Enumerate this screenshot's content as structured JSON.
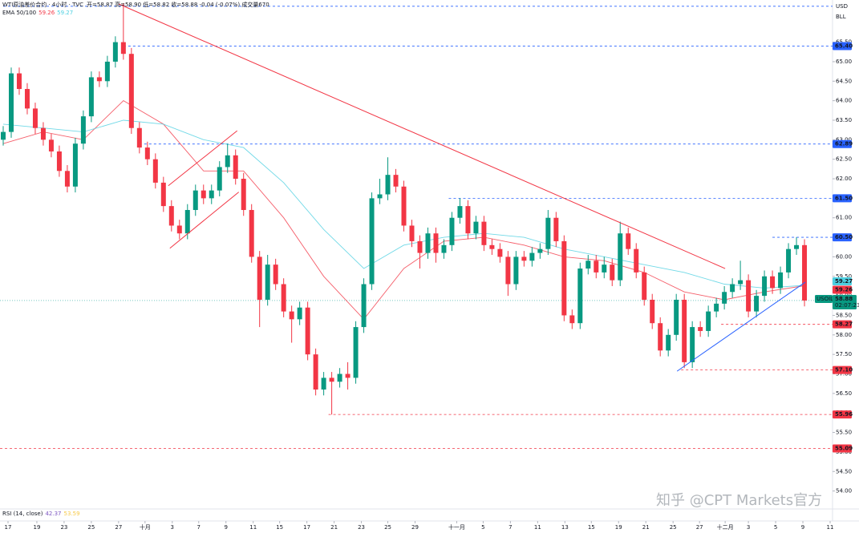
{
  "chart_data": {
    "type": "candlestick",
    "header": {
      "symbol": "WTI原油差价合约 · 4小时 · TVC",
      "ohlc": "开=58.87 高=58.90 低=58.82 收=58.88 -0.04 (-0.07%) 成交量670"
    },
    "indicator_label": "EMA 50/100",
    "rsi_label": "RSI (14, close)",
    "rsi_values": [
      42.37,
      53.59
    ],
    "currency": "USD",
    "unit": "BLL",
    "symbol_tag": "USOIL",
    "countdown": "02:07:23",
    "watermark": "知乎 @CPT Markets官方",
    "up_color": "#089981",
    "down_color": "#f23645",
    "xlim": [
      -0.4,
      103.5
    ],
    "ylim": [
      53.54,
      66.58
    ],
    "candles": {
      "open": [
        63.0,
        63.2,
        64.7,
        64.3,
        63.8,
        63.3,
        63.0,
        62.7,
        62.2,
        61.8,
        62.9,
        63.6,
        64.6,
        64.5,
        65.0,
        65.5,
        65.2,
        63.3,
        62.8,
        62.5,
        61.9,
        61.3,
        60.8,
        60.6,
        61.2,
        61.7,
        61.5,
        61.7,
        62.3,
        62.6,
        62.0,
        61.2,
        60.0,
        58.9,
        59.8,
        59.3,
        58.6,
        58.4,
        58.7,
        57.5,
        56.6,
        56.9,
        56.8,
        57.0,
        56.9,
        58.2,
        59.3,
        61.5,
        61.6,
        62.1,
        61.8,
        60.8,
        60.4,
        60.1,
        60.6,
        60.1,
        60.3,
        61.0,
        61.3,
        60.6,
        60.9,
        60.3,
        60.2,
        60.0,
        59.3,
        60.0,
        59.9,
        60.1,
        60.2,
        61.0,
        60.4,
        58.5,
        58.3,
        59.7,
        59.9,
        59.6,
        59.8,
        59.4,
        60.6,
        60.2,
        59.6,
        58.9,
        58.3,
        57.6,
        58.0,
        58.9,
        57.3,
        58.2,
        58.1,
        58.6,
        58.8,
        59.1,
        59.3,
        59.4,
        58.6,
        59.0,
        59.5,
        59.2,
        59.6,
        60.2,
        60.3
      ],
      "high": [
        63.35,
        64.85,
        64.85,
        64.45,
        63.95,
        63.45,
        63.15,
        62.85,
        62.35,
        63.05,
        63.75,
        64.75,
        64.75,
        65.15,
        65.65,
        66.5,
        65.35,
        63.45,
        62.95,
        62.65,
        62.05,
        61.45,
        60.95,
        61.35,
        61.85,
        61.85,
        61.85,
        62.45,
        62.9,
        62.75,
        62.15,
        61.35,
        60.15,
        60.05,
        59.95,
        59.45,
        58.75,
        58.85,
        58.85,
        57.65,
        57.05,
        57.05,
        57.15,
        57.3,
        58.35,
        59.45,
        61.65,
        62.0,
        62.55,
        62.25,
        61.95,
        60.95,
        60.55,
        60.75,
        60.75,
        60.45,
        61.15,
        61.5,
        61.45,
        61.05,
        61.05,
        60.45,
        60.35,
        60.15,
        60.15,
        60.15,
        60.25,
        60.35,
        61.2,
        61.15,
        60.55,
        58.65,
        59.85,
        60.05,
        60.05,
        60.0,
        59.95,
        60.9,
        60.75,
        60.35,
        59.75,
        59.05,
        58.45,
        58.15,
        59.05,
        59.05,
        58.35,
        58.35,
        58.75,
        58.95,
        59.25,
        59.45,
        59.9,
        59.55,
        59.15,
        59.65,
        59.65,
        59.75,
        60.35,
        60.5,
        60.45
      ],
      "low": [
        62.85,
        63.05,
        64.15,
        63.65,
        63.15,
        62.85,
        62.55,
        62.05,
        61.65,
        61.65,
        62.75,
        63.45,
        64.35,
        64.35,
        64.85,
        65.05,
        63.15,
        62.65,
        62.35,
        61.75,
        61.15,
        60.65,
        60.45,
        60.45,
        61.05,
        61.35,
        61.35,
        61.55,
        62.15,
        61.85,
        61.05,
        59.85,
        58.2,
        58.75,
        59.15,
        58.45,
        57.8,
        58.25,
        57.35,
        56.45,
        56.45,
        55.96,
        56.65,
        56.6,
        56.75,
        58.05,
        59.15,
        61.35,
        61.45,
        61.65,
        60.65,
        60.25,
        59.7,
        59.95,
        59.85,
        59.95,
        60.15,
        60.85,
        60.45,
        60.45,
        60.15,
        60.05,
        59.85,
        59.0,
        59.15,
        59.75,
        59.75,
        59.95,
        60.05,
        60.25,
        58.35,
        58.15,
        58.15,
        59.55,
        59.45,
        59.45,
        59.25,
        59.25,
        60.05,
        59.45,
        58.75,
        58.15,
        57.45,
        57.45,
        57.85,
        57.15,
        57.15,
        57.95,
        57.95,
        58.45,
        58.65,
        58.95,
        59.15,
        58.45,
        58.45,
        58.85,
        59.05,
        59.05,
        59.45,
        60.05,
        58.73
      ],
      "close": [
        63.2,
        64.7,
        64.3,
        63.8,
        63.3,
        63.0,
        62.7,
        62.2,
        61.8,
        62.9,
        63.6,
        64.6,
        64.5,
        65.0,
        65.5,
        65.2,
        63.3,
        62.8,
        62.5,
        61.9,
        61.3,
        60.8,
        60.6,
        61.2,
        61.7,
        61.5,
        61.7,
        62.3,
        62.6,
        62.0,
        61.2,
        60.0,
        58.9,
        59.8,
        59.3,
        58.6,
        58.4,
        58.7,
        57.5,
        56.6,
        56.9,
        56.8,
        57.0,
        56.9,
        58.2,
        59.3,
        61.5,
        61.6,
        62.1,
        61.8,
        60.8,
        60.4,
        60.1,
        60.6,
        60.1,
        60.3,
        61.0,
        61.3,
        60.6,
        60.9,
        60.3,
        60.2,
        60.0,
        59.3,
        60.0,
        59.9,
        60.1,
        60.2,
        61.0,
        60.4,
        58.5,
        58.3,
        59.7,
        59.9,
        59.6,
        59.8,
        59.4,
        60.6,
        60.2,
        59.6,
        58.9,
        58.3,
        57.6,
        58.0,
        58.9,
        57.3,
        58.2,
        58.1,
        58.6,
        58.8,
        59.1,
        59.3,
        59.4,
        58.6,
        59.0,
        59.5,
        59.2,
        59.6,
        60.2,
        60.3,
        58.88
      ]
    },
    "series": [
      {
        "color": "#f23645",
        "x": [
          0,
          5,
          10,
          15,
          20,
          25,
          30,
          35,
          40,
          45,
          50,
          55,
          60,
          65,
          70,
          75,
          80,
          85,
          90,
          95,
          100
        ],
        "values": [
          62.9,
          63.2,
          63.0,
          64.0,
          63.4,
          62.2,
          62.2,
          61.0,
          59.5,
          58.4,
          59.7,
          60.4,
          60.5,
          60.3,
          60.0,
          59.9,
          59.6,
          59.1,
          58.9,
          59.1,
          59.26
        ]
      },
      {
        "color": "#4dd0e1",
        "x": [
          0,
          5,
          10,
          15,
          20,
          25,
          30,
          35,
          40,
          45,
          50,
          55,
          60,
          65,
          70,
          75,
          80,
          85,
          90,
          95,
          100
        ],
        "values": [
          63.4,
          63.3,
          63.2,
          63.5,
          63.4,
          63.0,
          62.8,
          61.9,
          60.7,
          59.7,
          60.3,
          60.5,
          60.6,
          60.5,
          60.2,
          60.0,
          59.8,
          59.6,
          59.3,
          59.2,
          59.27
        ]
      }
    ],
    "trendlines": [
      {
        "x": [
          14.4,
          90.1
        ],
        "y": [
          66.48,
          59.7
        ],
        "color": "#f23645"
      },
      {
        "x": [
          84.1,
          100.1
        ],
        "y": [
          57.07,
          59.35
        ],
        "color": "#2962ff"
      },
      {
        "x": [
          20.8,
          29.4
        ],
        "y": [
          60.22,
          61.66
        ],
        "color": "#f23645"
      },
      {
        "x": [
          20.6,
          29.2
        ],
        "y": [
          61.82,
          63.23
        ],
        "color": "#f23645"
      }
    ],
    "levels": [
      {
        "value": 66.42,
        "from": 0,
        "color": "#2962ff"
      },
      {
        "value": 65.4,
        "label": "65.40",
        "from": 15,
        "color": "#2962ff"
      },
      {
        "value": 62.89,
        "label": "62.89",
        "from": 17.6,
        "color": "#2962ff"
      },
      {
        "value": 61.5,
        "label": "61.50",
        "from": 55.6,
        "color": "#2962ff"
      },
      {
        "value": 60.5,
        "label": "60.50",
        "from": 96,
        "color": "#2962ff"
      },
      {
        "value": 58.27,
        "label": "58.27",
        "from": 89.6,
        "color": "#f23645"
      },
      {
        "value": 57.1,
        "label": "57.10",
        "from": 84.6,
        "color": "#f23645"
      },
      {
        "value": 55.96,
        "label": "55.96",
        "from": 40.6,
        "color": "#f23645"
      },
      {
        "value": 55.09,
        "label": "55.09",
        "from": -0.4,
        "color": "#f23645"
      }
    ],
    "yticks": [
      {
        "value": 54,
        "label": "54.00"
      },
      {
        "value": 54.5,
        "label": "54.50"
      },
      {
        "value": 55,
        "label": "55.00"
      },
      {
        "value": 55.5,
        "label": "55.50"
      },
      {
        "value": 56,
        "label": "56.00"
      },
      {
        "value": 56.5,
        "label": "56.50"
      },
      {
        "value": 57,
        "label": "57.00"
      },
      {
        "value": 57.5,
        "label": "57.50"
      },
      {
        "value": 58,
        "label": "58.00"
      },
      {
        "value": 58.5,
        "label": "58.50"
      },
      {
        "value": 59,
        "label": "59.00"
      },
      {
        "value": 59.5,
        "label": "59.50"
      },
      {
        "value": 60,
        "label": "60.00"
      },
      {
        "value": 60.5,
        "label": "60.50"
      },
      {
        "value": 61,
        "label": "61.00"
      },
      {
        "value": 61.5,
        "label": "61.50"
      },
      {
        "value": 62,
        "label": "62.00"
      },
      {
        "value": 62.5,
        "label": "62.50"
      },
      {
        "value": 63,
        "label": "63.00"
      },
      {
        "value": 63.5,
        "label": "63.50"
      },
      {
        "value": 64,
        "label": "64.00"
      },
      {
        "value": 64.5,
        "label": "64.50"
      },
      {
        "value": 65,
        "label": "65.00"
      },
      {
        "value": 65.5,
        "label": "65.50"
      }
    ],
    "xticks": [
      {
        "value": 0.6,
        "label": "17"
      },
      {
        "value": 4.2,
        "label": "19"
      },
      {
        "value": 7.6,
        "label": "23"
      },
      {
        "value": 11,
        "label": "25"
      },
      {
        "value": 14.4,
        "label": "27"
      },
      {
        "value": 17.7,
        "label": "十月"
      },
      {
        "value": 21.1,
        "label": "3"
      },
      {
        "value": 24.4,
        "label": "7"
      },
      {
        "value": 27.8,
        "label": "9"
      },
      {
        "value": 31.2,
        "label": "11"
      },
      {
        "value": 34.5,
        "label": "15"
      },
      {
        "value": 37.9,
        "label": "17"
      },
      {
        "value": 41.3,
        "label": "21"
      },
      {
        "value": 44.7,
        "label": "23"
      },
      {
        "value": 48,
        "label": "25"
      },
      {
        "value": 51.4,
        "label": "29"
      },
      {
        "value": 56.6,
        "label": "十一月"
      },
      {
        "value": 59.9,
        "label": "5"
      },
      {
        "value": 63.3,
        "label": "7"
      },
      {
        "value": 66.7,
        "label": "11"
      },
      {
        "value": 70.1,
        "label": "13"
      },
      {
        "value": 73.4,
        "label": "15"
      },
      {
        "value": 76.8,
        "label": "19"
      },
      {
        "value": 80.2,
        "label": "21"
      },
      {
        "value": 83.6,
        "label": "25"
      },
      {
        "value": 86.9,
        "label": "27"
      },
      {
        "value": 90.1,
        "label": "十二月"
      },
      {
        "value": 93,
        "label": "3"
      },
      {
        "value": 96.4,
        "label": "5"
      },
      {
        "value": 99.8,
        "label": "9"
      },
      {
        "value": 103.2,
        "label": "11"
      }
    ]
  }
}
